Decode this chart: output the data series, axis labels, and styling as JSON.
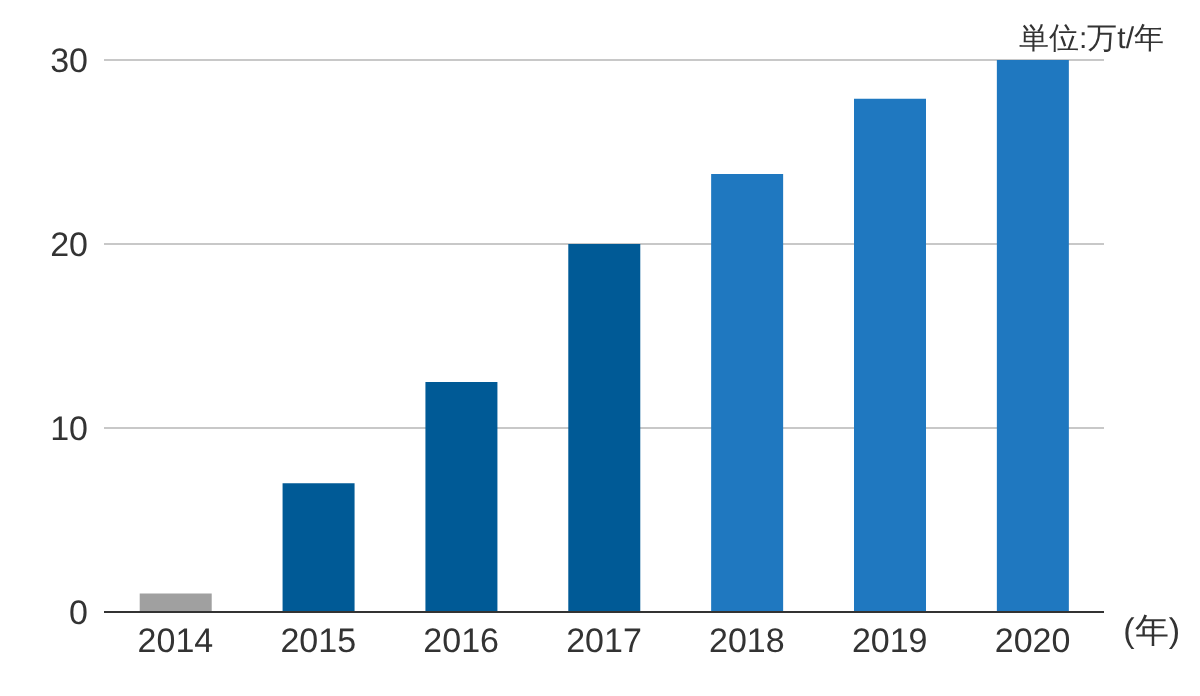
{
  "chart_data": {
    "type": "bar",
    "ylabel": "単位:万t/年",
    "xlabel": "(年)",
    "categories": [
      "2014",
      "2015",
      "2016",
      "2017",
      "2018",
      "2019",
      "2020"
    ],
    "values": [
      1,
      7,
      12.5,
      20,
      23.8,
      27.9,
      30
    ],
    "colors": [
      "#a0a0a0",
      "#005a96",
      "#005a96",
      "#005a96",
      "#1f78c0",
      "#1f78c0",
      "#1f78c0"
    ],
    "ylim": [
      0,
      30
    ],
    "yticks": [
      0,
      10,
      20,
      30
    ],
    "grid": "y"
  }
}
